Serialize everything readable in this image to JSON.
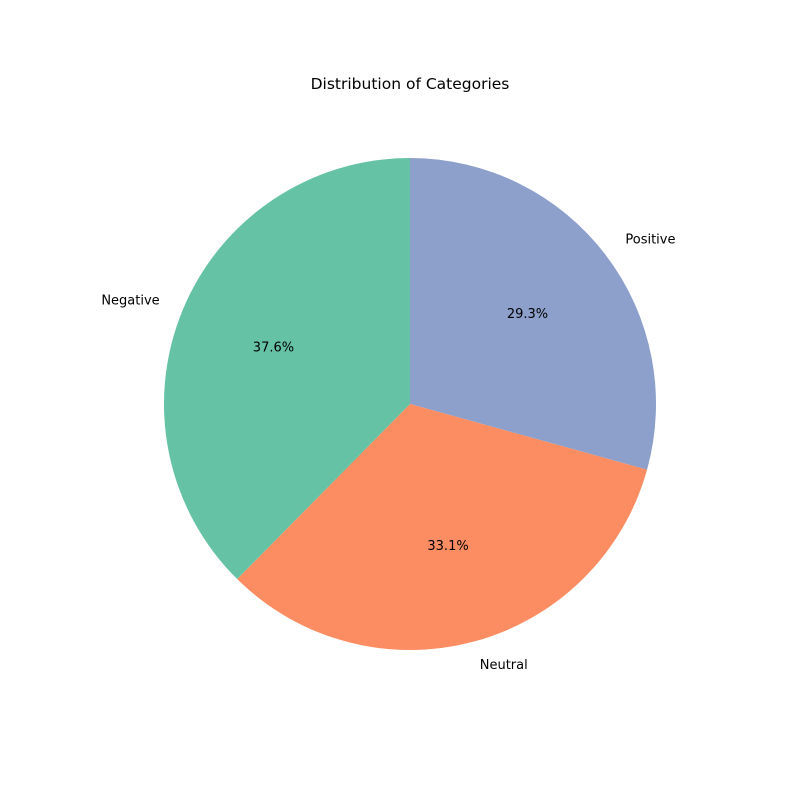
{
  "chart_data": {
    "type": "pie",
    "title": "Distribution of Categories",
    "slices": [
      {
        "label": "Positive",
        "percent_label": "29.3%",
        "value": 29.3,
        "color": "#8da0cb"
      },
      {
        "label": "Neutral",
        "percent_label": "33.1%",
        "value": 33.1,
        "color": "#fc8d62"
      },
      {
        "label": "Negative",
        "percent_label": "37.6%",
        "value": 37.6,
        "color": "#66c2a5"
      }
    ],
    "start_angle_deg": 90,
    "direction": "clockwise",
    "legend": "none"
  }
}
